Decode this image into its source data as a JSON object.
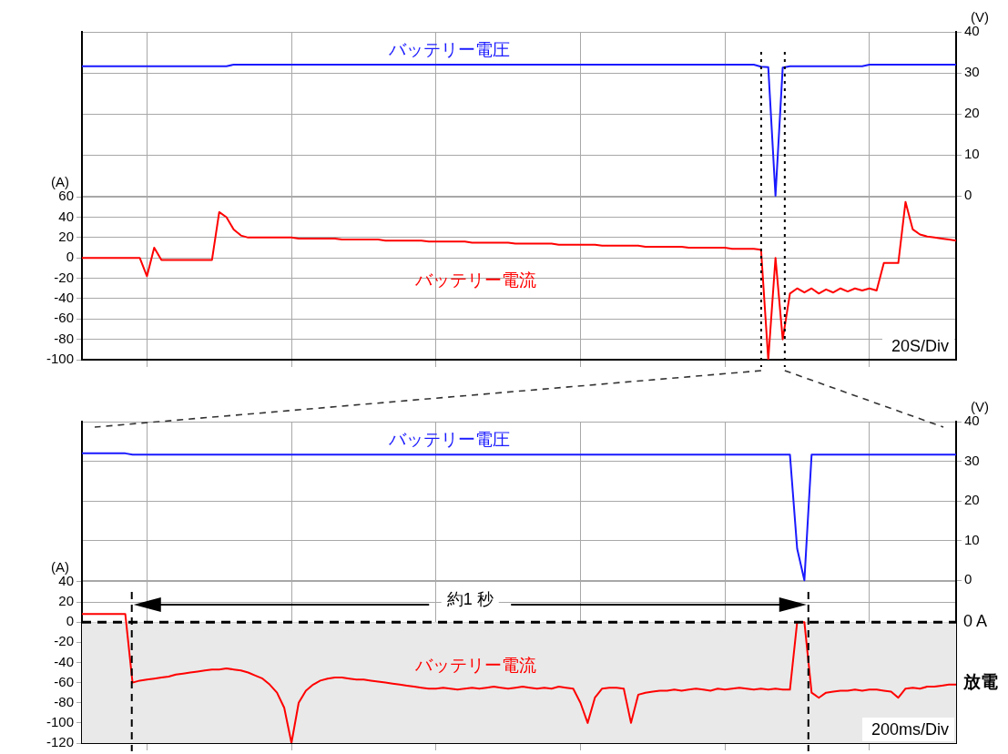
{
  "chart_data": [
    {
      "type": "line",
      "categories": [
        null,
        null,
        null,
        null,
        null,
        null,
        null,
        null,
        null,
        null,
        null,
        null,
        null,
        null,
        null,
        null,
        null,
        null,
        null,
        null,
        null,
        null,
        null,
        null,
        null,
        null,
        null,
        null,
        null,
        null,
        null,
        null,
        null,
        null,
        null,
        null,
        null,
        null,
        null,
        null,
        null,
        null,
        null,
        null,
        null,
        null,
        null,
        null,
        null,
        null,
        null,
        null,
        null,
        null,
        null,
        null,
        null,
        null,
        null,
        null,
        null,
        null,
        null,
        null,
        null,
        null,
        null,
        null,
        null,
        null,
        null,
        null,
        null,
        null,
        null,
        null,
        null,
        null,
        null,
        null,
        null,
        null,
        null,
        null,
        null,
        null,
        null,
        null,
        null,
        null,
        null,
        null,
        null,
        null,
        null,
        null,
        null,
        null,
        null,
        null,
        null,
        null,
        null,
        null,
        null,
        null,
        null,
        null,
        null,
        null,
        null,
        null,
        null,
        null,
        null,
        null,
        null,
        null,
        null,
        null,
        null,
        null
      ],
      "ylim": [
        -100,
        222
      ],
      "yticks": [
        -100,
        -80,
        -60,
        -40,
        -20,
        0,
        20,
        40,
        60
      ],
      "y2lim": [
        -40,
        40
      ],
      "y2ticks": [
        0,
        10,
        20,
        30,
        40
      ],
      "ylabel": "(A)",
      "y2label": "(V)",
      "grid": true,
      "tick_labels": "y",
      "series": [
        {
          "name": "バッテリー電圧",
          "color": "#1a1aff",
          "axis": "y2",
          "values": [
            31.6,
            31.6,
            31.6,
            31.6,
            31.6,
            31.6,
            31.6,
            31.6,
            31.6,
            31.6,
            31.6,
            31.6,
            31.6,
            31.6,
            31.6,
            31.6,
            31.6,
            31.6,
            31.6,
            31.6,
            31.6,
            32,
            32,
            32,
            32,
            32,
            32,
            32,
            32,
            32,
            32,
            32,
            32,
            32,
            32,
            32,
            32,
            32,
            32,
            32,
            32,
            32,
            32,
            32,
            32,
            32,
            32,
            32,
            32,
            32,
            32,
            32,
            32,
            32,
            32,
            32,
            32,
            32,
            32,
            32,
            32,
            32,
            32,
            32,
            32,
            32,
            32,
            32,
            32,
            32,
            32,
            32,
            32,
            32,
            32,
            32,
            32,
            32,
            32,
            32,
            32,
            32,
            32,
            32,
            32,
            32,
            32,
            32,
            32,
            32,
            32,
            32,
            32,
            32,
            31.5,
            31.4,
            0,
            31.3,
            31.6,
            31.6,
            31.6,
            31.6,
            31.6,
            31.6,
            31.6,
            31.6,
            31.6,
            31.6,
            31.6,
            32,
            32,
            32,
            32,
            32,
            32,
            32,
            32,
            32,
            32,
            32,
            32,
            32
          ]
        },
        {
          "name": "バッテリー電流",
          "color": "#ff0000",
          "axis": "y",
          "values": [
            0,
            0,
            0,
            0,
            0,
            0,
            0,
            0,
            0,
            -18,
            10,
            -2,
            -2,
            -2,
            -2,
            -2,
            -2,
            -2,
            -2,
            45,
            40,
            28,
            22,
            20,
            20,
            20,
            20,
            20,
            20,
            20,
            19,
            19,
            19,
            19,
            19,
            19,
            18,
            18,
            18,
            18,
            18,
            18,
            17,
            17,
            17,
            17,
            17,
            17,
            16,
            16,
            16,
            16,
            16,
            16,
            15,
            15,
            15,
            15,
            15,
            15,
            14,
            14,
            14,
            14,
            14,
            14,
            13,
            13,
            13,
            13,
            13,
            13,
            12,
            12,
            12,
            12,
            12,
            12,
            11,
            11,
            11,
            11,
            11,
            11,
            10,
            10,
            10,
            10,
            10,
            10,
            9,
            9,
            9,
            9,
            8,
            -100,
            0,
            -80,
            -35,
            -30,
            -34,
            -30,
            -35,
            -31,
            -34,
            -30,
            -33,
            -30,
            -32,
            -30,
            -32,
            -5,
            -5,
            -5,
            55,
            28,
            23,
            21,
            20,
            19,
            18,
            17
          ]
        }
      ],
      "annotations": [
        "20S/Div"
      ]
    },
    {
      "type": "line",
      "categories": [
        null,
        null,
        null,
        null,
        null,
        null,
        null,
        null,
        null,
        null,
        null,
        null,
        null,
        null,
        null,
        null,
        null,
        null,
        null,
        null,
        null,
        null,
        null,
        null,
        null,
        null,
        null,
        null,
        null,
        null,
        null,
        null,
        null,
        null,
        null,
        null,
        null,
        null,
        null,
        null,
        null,
        null,
        null,
        null,
        null,
        null,
        null,
        null,
        null,
        null,
        null,
        null,
        null,
        null,
        null,
        null,
        null,
        null,
        null,
        null,
        null,
        null,
        null,
        null,
        null,
        null,
        null,
        null,
        null,
        null,
        null,
        null,
        null,
        null,
        null,
        null,
        null,
        null,
        null,
        null,
        null,
        null,
        null,
        null,
        null,
        null,
        null,
        null,
        null,
        null,
        null,
        null,
        null,
        null,
        null,
        null,
        null,
        null,
        null,
        null,
        null,
        null,
        null,
        null,
        null,
        null,
        null,
        null,
        null,
        null,
        null,
        null,
        null,
        null,
        null,
        null,
        null,
        null,
        null,
        null,
        null,
        null
      ],
      "ylim": [
        -120,
        199
      ],
      "yticks": [
        -120,
        -100,
        -80,
        -60,
        -40,
        -20,
        0,
        20,
        40
      ],
      "y2lim": [
        -41,
        40
      ],
      "y2ticks": [
        0,
        10,
        20,
        30,
        40
      ],
      "ylabel": "(A)",
      "y2label": "(V)",
      "grid": true,
      "tick_labels": "y",
      "series": [
        {
          "name": "バッテリー電圧",
          "color": "#1a1aff",
          "axis": "y2",
          "values": [
            32,
            32,
            32,
            32,
            32,
            32,
            32,
            31.7,
            31.7,
            31.7,
            31.7,
            31.7,
            31.7,
            31.7,
            31.7,
            31.7,
            31.7,
            31.7,
            31.7,
            31.7,
            31.7,
            31.7,
            31.7,
            31.7,
            31.7,
            31.7,
            31.7,
            31.7,
            31.7,
            31.7,
            31.7,
            31.7,
            31.7,
            31.7,
            31.7,
            31.7,
            31.7,
            31.7,
            31.7,
            31.7,
            31.7,
            31.7,
            31.7,
            31.7,
            31.7,
            31.7,
            31.7,
            31.7,
            31.7,
            31.7,
            31.7,
            31.7,
            31.7,
            31.7,
            31.7,
            31.7,
            31.7,
            31.7,
            31.7,
            31.7,
            31.7,
            31.7,
            31.7,
            31.7,
            31.7,
            31.7,
            31.7,
            31.7,
            31.7,
            31.7,
            31.7,
            31.7,
            31.7,
            31.7,
            31.7,
            31.7,
            31.7,
            31.7,
            31.7,
            31.7,
            31.7,
            31.7,
            31.7,
            31.7,
            31.7,
            31.7,
            31.7,
            31.7,
            31.7,
            31.7,
            31.7,
            31.7,
            31.7,
            31.7,
            31.7,
            31.7,
            31.7,
            31.7,
            31.7,
            8,
            0,
            31.7,
            31.7,
            31.7,
            31.7,
            31.7,
            31.7,
            31.7,
            31.7,
            31.7,
            31.7,
            31.7,
            31.7,
            31.7,
            31.7,
            31.7,
            31.7,
            31.7,
            31.7,
            31.7,
            31.7,
            31.7
          ]
        },
        {
          "name": "バッテリー電流",
          "color": "#ff0000",
          "axis": "y",
          "values": [
            8,
            8,
            8,
            8,
            8,
            8,
            8,
            -60,
            -58,
            -57,
            -56,
            -55,
            -54,
            -52,
            -51,
            -50,
            -49,
            -48,
            -47,
            -47,
            -46,
            -47,
            -48,
            -50,
            -53,
            -56,
            -62,
            -70,
            -85,
            -120,
            -80,
            -68,
            -62,
            -58,
            -56,
            -55,
            -55,
            -56,
            -57,
            -57,
            -58,
            -59,
            -60,
            -61,
            -62,
            -63,
            -64,
            -65,
            -66,
            -66,
            -65,
            -66,
            -67,
            -66,
            -65,
            -66,
            -65,
            -64,
            -65,
            -66,
            -65,
            -64,
            -65,
            -66,
            -65,
            -66,
            -64,
            -65,
            -66,
            -80,
            -100,
            -75,
            -66,
            -65,
            -65,
            -66,
            -100,
            -72,
            -70,
            -69,
            -68,
            -68,
            -67,
            -68,
            -67,
            -66,
            -67,
            -68,
            -66,
            -67,
            -66,
            -65,
            -66,
            -67,
            -66,
            -67,
            -66,
            -67,
            -67,
            0,
            0,
            -70,
            -75,
            -70,
            -69,
            -68,
            -68,
            -67,
            -68,
            -67,
            -67,
            -68,
            -69,
            -75,
            -66,
            -65,
            -66,
            -64,
            -64,
            -63,
            -62,
            -62
          ]
        }
      ],
      "ref_lines": [
        {
          "axis": "y",
          "value": 0,
          "label": "0 A",
          "color": "#000000",
          "line_style": "dashed"
        }
      ],
      "bands": [
        {
          "axis": "y",
          "from": -120,
          "to": 0,
          "label": "放電",
          "color": "#e9e9e9"
        }
      ],
      "annotations": [
        "200ms/Div",
        "約1 秒"
      ]
    }
  ]
}
